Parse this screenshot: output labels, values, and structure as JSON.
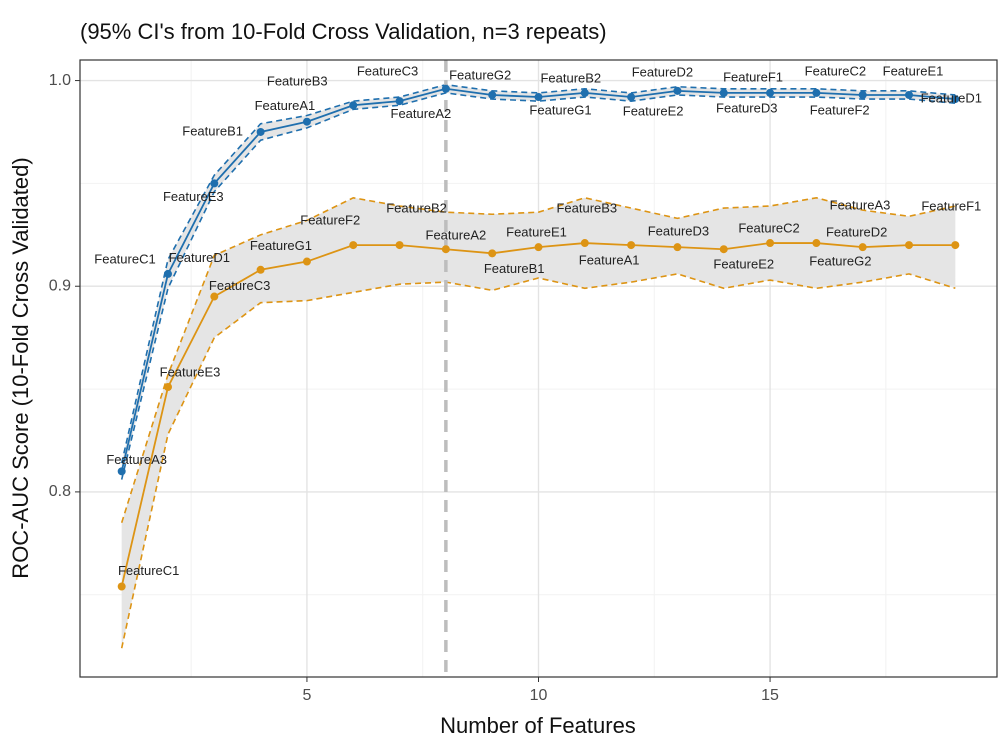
{
  "chart_data": {
    "type": "line",
    "subtitle": "(95% CI's from 10-Fold Cross Validation, n=3 repeats)",
    "x_label": "Number of Features",
    "y_label": "ROC-AUC Score (10-Fold Cross Validated)",
    "x": [
      1,
      2,
      3,
      4,
      5,
      6,
      7,
      8,
      9,
      10,
      11,
      12,
      13,
      14,
      15,
      16,
      17,
      18,
      19
    ],
    "xlim": [
      0.1,
      19.9
    ],
    "xticks": [
      5,
      10,
      15
    ],
    "ylim": [
      0.71,
      1.01
    ],
    "yticks": [
      0.8,
      0.9,
      {
        "value": 1.0,
        "label": "1.0"
      }
    ],
    "x_minor_grid": [
      2.5,
      7.5,
      12.5,
      17.5
    ],
    "y_minor_grid": [
      0.75,
      0.85,
      0.95
    ],
    "grid": true,
    "vline": 8,
    "band_color": "#e5e5e5",
    "series": [
      {
        "color": "#1f6fae",
        "values": [
          0.81,
          0.906,
          0.95,
          0.975,
          0.98,
          0.988,
          0.99,
          0.996,
          0.993,
          0.992,
          0.994,
          0.992,
          0.995,
          0.994,
          0.994,
          0.994,
          0.993,
          0.993,
          0.991
        ],
        "lower": [
          0.806,
          0.899,
          0.946,
          0.971,
          0.977,
          0.986,
          0.988,
          0.994,
          0.991,
          0.99,
          0.992,
          0.99,
          0.993,
          0.992,
          0.992,
          0.992,
          0.991,
          0.991,
          0.989
        ],
        "upper": [
          0.814,
          0.913,
          0.954,
          0.979,
          0.983,
          0.99,
          0.992,
          0.998,
          0.995,
          0.994,
          0.996,
          0.994,
          0.997,
          0.996,
          0.996,
          0.996,
          0.995,
          0.995,
          0.993
        ],
        "labels": [
          "FeatureA3",
          "FeatureC1",
          "FeatureE3",
          "FeatureB1",
          "FeatureA1",
          "FeatureB3",
          "FeatureC3",
          "FeatureA2",
          "FeatureG2",
          "FeatureG1",
          "FeatureB2",
          "FeatureE2",
          "FeatureD2",
          "FeatureD3",
          "FeatureF1",
          "FeatureC2",
          "FeatureF2",
          "FeatureE1",
          "FeatureD1"
        ]
      },
      {
        "color": "#dd9414",
        "values": [
          0.754,
          0.851,
          0.895,
          0.908,
          0.912,
          0.92,
          0.92,
          0.918,
          0.916,
          0.919,
          0.921,
          0.92,
          0.919,
          0.918,
          0.921,
          0.921,
          0.919,
          0.92,
          0.92
        ],
        "lower": [
          0.724,
          0.828,
          0.875,
          0.892,
          0.893,
          0.897,
          0.901,
          0.902,
          0.898,
          0.904,
          0.899,
          0.902,
          0.906,
          0.899,
          0.903,
          0.899,
          0.902,
          0.906,
          0.899
        ],
        "upper": [
          0.785,
          0.857,
          0.915,
          0.925,
          0.932,
          0.943,
          0.939,
          0.936,
          0.935,
          0.936,
          0.943,
          0.938,
          0.933,
          0.938,
          0.939,
          0.943,
          0.937,
          0.934,
          0.939
        ],
        "labels": [
          "FeatureC1",
          "FeatureE3",
          "FeatureD1",
          "FeatureC3",
          "FeatureG1",
          "FeatureF2",
          "FeatureB2",
          "FeatureA2",
          "FeatureB1",
          "FeatureE1",
          "FeatureB3",
          "FeatureA1",
          "FeatureD3",
          "FeatureE2",
          "FeatureC2",
          "FeatureG2",
          "FeatureD2",
          "FeatureA3",
          "FeatureF1"
        ]
      }
    ]
  }
}
